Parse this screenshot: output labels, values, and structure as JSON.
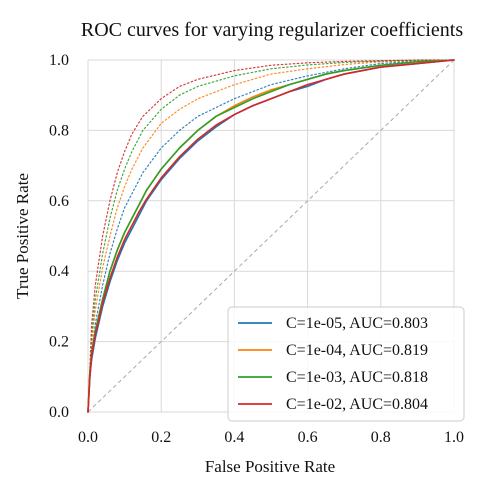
{
  "chart_data": {
    "type": "line",
    "title": "ROC curves for varying regularizer coefficients",
    "xlabel": "False Positive Rate",
    "ylabel": "True Positive Rate",
    "xlim": [
      0,
      1
    ],
    "ylim": [
      0,
      1
    ],
    "xticks": [
      "0.0",
      "0.2",
      "0.4",
      "0.6",
      "0.8",
      "1.0"
    ],
    "yticks": [
      "0.0",
      "0.2",
      "0.4",
      "0.6",
      "0.8",
      "1.0"
    ],
    "grid": true,
    "legend_position": "bottom-right",
    "diagonal": {
      "x": [
        0,
        1
      ],
      "y": [
        0,
        1
      ],
      "color": "#a9a9a9",
      "style": "dashed"
    },
    "series": [
      {
        "name": "C=1e-05, AUC=0.803",
        "color": "#1f77b4",
        "x": [
          0,
          0.005,
          0.01,
          0.02,
          0.04,
          0.06,
          0.08,
          0.1,
          0.12,
          0.14,
          0.16,
          0.18,
          0.2,
          0.25,
          0.3,
          0.35,
          0.4,
          0.45,
          0.5,
          0.55,
          0.6,
          0.65,
          0.7,
          0.8,
          0.9,
          1.0
        ],
        "y": [
          0,
          0.1,
          0.15,
          0.21,
          0.3,
          0.37,
          0.43,
          0.48,
          0.52,
          0.56,
          0.6,
          0.63,
          0.66,
          0.72,
          0.77,
          0.81,
          0.845,
          0.87,
          0.89,
          0.91,
          0.925,
          0.945,
          0.96,
          0.98,
          0.99,
          1.0
        ]
      },
      {
        "name": "C=1e-04, AUC=0.819",
        "color": "#ff7f0e",
        "x": [
          0,
          0.005,
          0.01,
          0.02,
          0.04,
          0.06,
          0.08,
          0.1,
          0.12,
          0.14,
          0.16,
          0.18,
          0.2,
          0.25,
          0.3,
          0.35,
          0.4,
          0.45,
          0.5,
          0.55,
          0.6,
          0.65,
          0.7,
          0.8,
          0.9,
          1.0
        ],
        "y": [
          0,
          0.11,
          0.17,
          0.23,
          0.32,
          0.4,
          0.46,
          0.51,
          0.55,
          0.59,
          0.63,
          0.66,
          0.69,
          0.75,
          0.8,
          0.84,
          0.87,
          0.895,
          0.915,
          0.93,
          0.945,
          0.96,
          0.97,
          0.985,
          0.995,
          1.0
        ]
      },
      {
        "name": "C=1e-03, AUC=0.818",
        "color": "#2ca02c",
        "x": [
          0,
          0.005,
          0.01,
          0.02,
          0.04,
          0.06,
          0.08,
          0.1,
          0.12,
          0.14,
          0.16,
          0.18,
          0.2,
          0.25,
          0.3,
          0.35,
          0.4,
          0.45,
          0.5,
          0.55,
          0.6,
          0.65,
          0.7,
          0.8,
          0.9,
          1.0
        ],
        "y": [
          0,
          0.11,
          0.17,
          0.23,
          0.32,
          0.4,
          0.46,
          0.51,
          0.55,
          0.59,
          0.63,
          0.66,
          0.69,
          0.75,
          0.8,
          0.84,
          0.865,
          0.89,
          0.91,
          0.93,
          0.945,
          0.96,
          0.97,
          0.985,
          0.995,
          1.0
        ]
      },
      {
        "name": "C=1e-02, AUC=0.804",
        "color": "#d62728",
        "x": [
          0,
          0.005,
          0.01,
          0.02,
          0.04,
          0.06,
          0.08,
          0.1,
          0.12,
          0.14,
          0.16,
          0.18,
          0.2,
          0.25,
          0.3,
          0.35,
          0.4,
          0.45,
          0.5,
          0.55,
          0.6,
          0.65,
          0.7,
          0.8,
          0.9,
          1.0
        ],
        "y": [
          0,
          0.1,
          0.16,
          0.22,
          0.31,
          0.38,
          0.44,
          0.49,
          0.53,
          0.57,
          0.605,
          0.635,
          0.665,
          0.725,
          0.775,
          0.815,
          0.845,
          0.87,
          0.89,
          0.91,
          0.93,
          0.945,
          0.96,
          0.98,
          0.99,
          1.0
        ]
      }
    ],
    "dotted_series": [
      {
        "color": "#1f77b4",
        "x": [
          0,
          0.01,
          0.02,
          0.04,
          0.06,
          0.08,
          0.1,
          0.12,
          0.15,
          0.2,
          0.25,
          0.3,
          0.4,
          0.5,
          0.6,
          0.7,
          0.8,
          0.9,
          1.0
        ],
        "y": [
          0,
          0.17,
          0.25,
          0.36,
          0.45,
          0.52,
          0.58,
          0.62,
          0.68,
          0.75,
          0.8,
          0.84,
          0.89,
          0.93,
          0.955,
          0.975,
          0.99,
          0.997,
          1.0
        ]
      },
      {
        "color": "#ff7f0e",
        "x": [
          0,
          0.01,
          0.02,
          0.04,
          0.06,
          0.08,
          0.1,
          0.12,
          0.15,
          0.2,
          0.25,
          0.3,
          0.4,
          0.5,
          0.6,
          0.7,
          0.8,
          0.9,
          1.0
        ],
        "y": [
          0,
          0.2,
          0.29,
          0.41,
          0.5,
          0.58,
          0.64,
          0.69,
          0.75,
          0.82,
          0.86,
          0.89,
          0.93,
          0.96,
          0.975,
          0.987,
          0.995,
          0.999,
          1.0
        ]
      },
      {
        "color": "#2ca02c",
        "x": [
          0,
          0.01,
          0.02,
          0.04,
          0.06,
          0.08,
          0.1,
          0.12,
          0.15,
          0.2,
          0.25,
          0.3,
          0.4,
          0.5,
          0.6,
          0.7,
          0.8,
          0.9,
          1.0
        ],
        "y": [
          0,
          0.22,
          0.32,
          0.45,
          0.55,
          0.63,
          0.69,
          0.74,
          0.8,
          0.86,
          0.9,
          0.925,
          0.955,
          0.975,
          0.986,
          0.993,
          0.997,
          0.999,
          1.0
        ]
      },
      {
        "color": "#d62728",
        "x": [
          0,
          0.01,
          0.02,
          0.04,
          0.06,
          0.08,
          0.1,
          0.12,
          0.15,
          0.2,
          0.25,
          0.3,
          0.4,
          0.5,
          0.6,
          0.7,
          0.8,
          0.9,
          1.0
        ],
        "y": [
          0,
          0.25,
          0.36,
          0.5,
          0.6,
          0.68,
          0.74,
          0.79,
          0.84,
          0.89,
          0.925,
          0.945,
          0.97,
          0.985,
          0.992,
          0.996,
          0.998,
          1.0,
          1.0
        ]
      }
    ]
  }
}
